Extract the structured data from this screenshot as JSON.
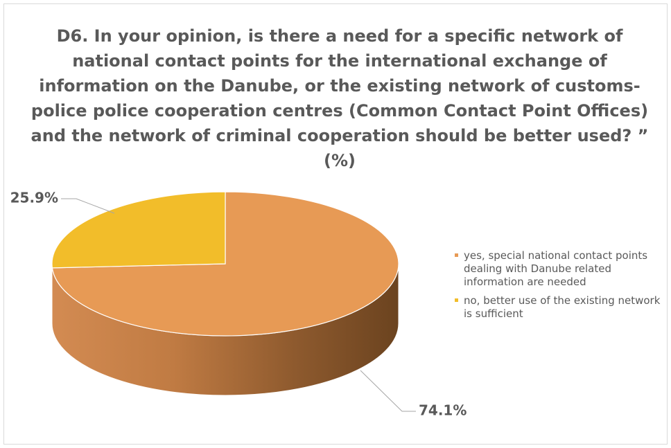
{
  "chart_data": {
    "type": "pie",
    "title": "D6. In your opinion, is there a need for a specific network of national contact points for the international exchange of information on the Danube, or the existing network of customs-police police cooperation centres (Common Contact Point Offices) and the network of criminal cooperation should be better used? ” (%)",
    "slices": [
      {
        "label": "yes, special national contact points dealing with Danube related information are needed",
        "value": 74.1,
        "value_label": "74.1%",
        "color": "#E79A55"
      },
      {
        "label": "no, better use of the existing network is sufficient",
        "value": 25.9,
        "value_label": "25.9%",
        "color": "#F2BD2A"
      }
    ],
    "legend_position": "right",
    "style": "3d-pie"
  }
}
